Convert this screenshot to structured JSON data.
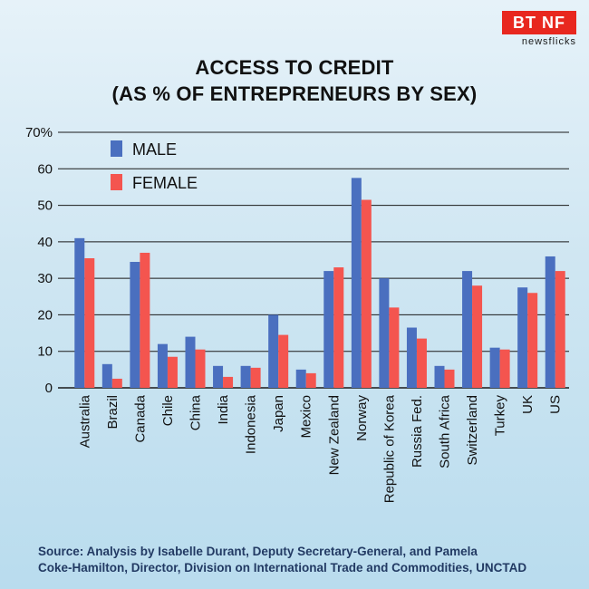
{
  "brand": {
    "logo_text": "BT NF",
    "logo_sub": "newsflicks"
  },
  "title_line1": "ACCESS TO CREDIT",
  "title_line2": "(AS % OF ENTREPRENEURS BY SEX)",
  "source_line1": "Source: Analysis by Isabelle Durant, Deputy Secretary-General, and Pamela",
  "source_line2": "Coke-Hamilton, Director, Division on International Trade and Commodities, UNCTAD",
  "colors": {
    "male": "#4a6fbf",
    "female": "#f4554f",
    "grid": "#1a1a1a"
  },
  "chart_data": {
    "type": "bar",
    "title": "ACCESS TO CREDIT (AS % OF ENTREPRENEURS BY SEX)",
    "categories": [
      "Australia",
      "Brazil",
      "Canada",
      "Chile",
      "China",
      "India",
      "Indonesia",
      "Japan",
      "Mexico",
      "New Zealand",
      "Norway",
      "Republic of Korea",
      "Russia Fed.",
      "South Africa",
      "Switzerland",
      "Turkey",
      "UK",
      "US"
    ],
    "series": [
      {
        "name": "MALE",
        "values": [
          41,
          6.5,
          34.5,
          12,
          14,
          6,
          6,
          20,
          5,
          32,
          57.5,
          30,
          16.5,
          6,
          32,
          11,
          27.5,
          36
        ]
      },
      {
        "name": "FEMALE",
        "values": [
          35.5,
          2.5,
          37,
          8.5,
          10.5,
          3,
          5.5,
          14.5,
          4,
          33,
          51.5,
          22,
          13.5,
          5,
          28,
          10.5,
          26,
          32
        ]
      }
    ],
    "yticks": [
      "0",
      "10",
      "20",
      "30",
      "40",
      "50",
      "60",
      "70%"
    ],
    "ylim": [
      0,
      70
    ],
    "grid": true,
    "legend": "top-left"
  }
}
